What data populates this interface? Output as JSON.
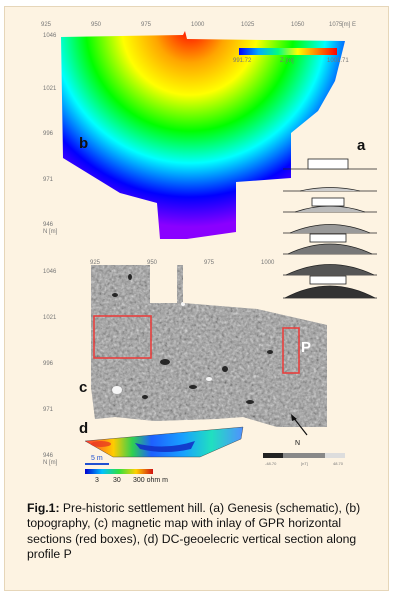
{
  "topo": {
    "x_ticks": [
      "925",
      "950",
      "975",
      "1000",
      "1025",
      "1050",
      "1075"
    ],
    "x_unit": "[m] E",
    "y_ticks": [
      "1046",
      "1021",
      "996",
      "971",
      "946"
    ],
    "y_unit": "N [m]",
    "colorbar_min": "991.72",
    "colorbar_label": "Z [m]",
    "colorbar_max": "1001.71",
    "colors": [
      "#ff0000",
      "#ffa500",
      "#ffff00",
      "#00ff00",
      "#00ffff",
      "#0000ff",
      "#8a00ff"
    ]
  },
  "mag": {
    "x_ticks": [
      "925",
      "950",
      "975",
      "1000"
    ],
    "y_ticks": [
      "1046",
      "1021",
      "996",
      "971",
      "946"
    ],
    "y_unit": "N [m]",
    "north_label": "N",
    "profile_label": "P",
    "scale_left": "-48.70",
    "scale_unit": "[nT]",
    "scale_right": "48.70"
  },
  "dc": {
    "scale_label": "5 m",
    "res_ticks": [
      "3",
      "30",
      "300 ohm m"
    ]
  },
  "labels": {
    "a": "a",
    "b": "b",
    "c": "c",
    "d": "d"
  },
  "caption": {
    "fig": "Fig.1:",
    "text": " Pre-historic settlement hill. (a) Genesis (schematic), (b) topography, (c) magnetic map with inlay of GPR horizontal sections (red boxes), (d) DC-geoelecric vertical section along profile P"
  }
}
